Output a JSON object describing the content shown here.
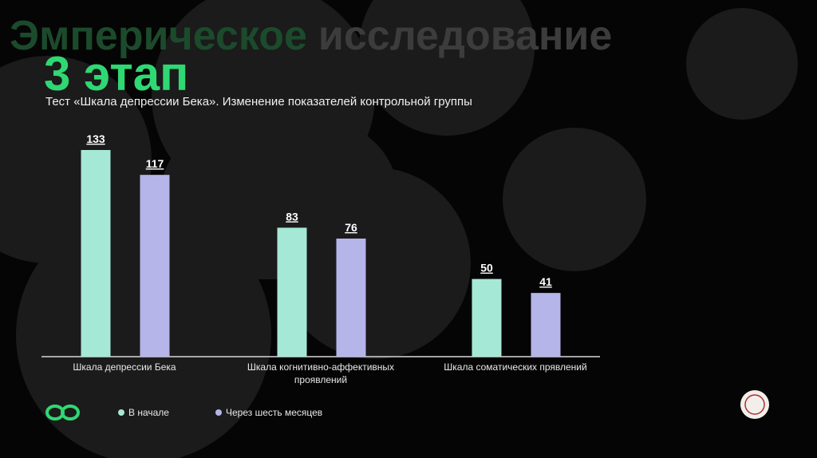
{
  "slide": {
    "title": [
      "Эмперическое",
      "исследование"
    ],
    "stage": "3 этап"
  },
  "chart_data": {
    "type": "bar",
    "title": "Тест «Шкала депрессии Бека». Изменение показателей контрольной группы",
    "categories": [
      "Шкала депрессии Бека",
      "Шкала когнитивно-аффективных проявлений",
      "Шкала соматических прявлений"
    ],
    "series": [
      {
        "name": "В начале",
        "color": "#a6e8d6",
        "values": [
          133,
          83,
          50
        ]
      },
      {
        "name": "Через шесть месяцев",
        "color": "#b5b5ea",
        "values": [
          117,
          76,
          41
        ]
      }
    ]
  }
}
